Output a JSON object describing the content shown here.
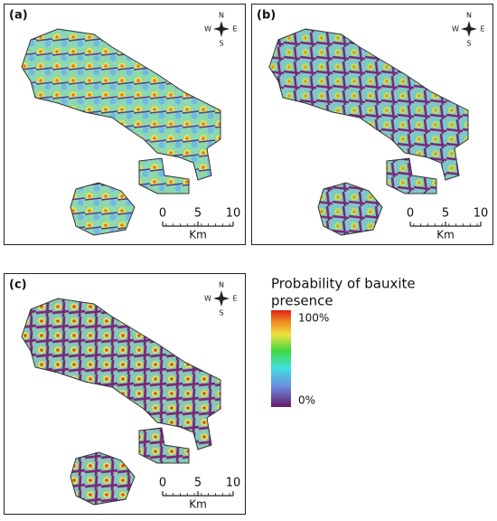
{
  "panels": [
    {
      "label": "(a)",
      "compass": {
        "n": "N",
        "e": "E",
        "s": "S",
        "w": "W"
      },
      "scale": {
        "ticks": [
          0,
          5,
          10
        ],
        "unit": "Km"
      }
    },
    {
      "label": "(b)",
      "compass": {
        "n": "N",
        "e": "E",
        "s": "S",
        "w": "W"
      },
      "scale": {
        "ticks": [
          0,
          5,
          10
        ],
        "unit": "Km"
      }
    },
    {
      "label": "(c)",
      "compass": {
        "n": "N",
        "e": "E",
        "s": "S",
        "w": "W"
      },
      "scale": {
        "ticks": [
          0,
          5,
          10
        ],
        "unit": "Km"
      }
    }
  ],
  "legend": {
    "title_lines": [
      "Probability of bauxite",
      "presence"
    ],
    "max_label": "100%",
    "min_label": "0%"
  }
}
